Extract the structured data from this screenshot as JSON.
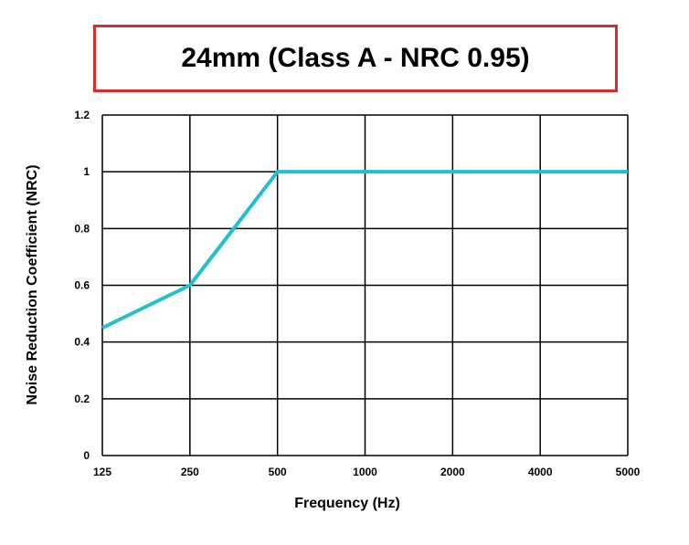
{
  "chart_data": {
    "type": "line",
    "title": "24mm (Class A - NRC 0.95)",
    "xlabel": "Frequency (Hz)",
    "ylabel": "Noise Reduction Coefficient (NRC)",
    "categories": [
      "125",
      "250",
      "500",
      "1000",
      "2000",
      "4000",
      "5000"
    ],
    "ylim": [
      0,
      1.2
    ],
    "yticks": [
      0,
      0.2,
      0.4,
      0.6,
      0.8,
      1,
      1.2
    ],
    "ytick_labels": [
      "0",
      "0.2",
      "0.4",
      "0.6",
      "0.8",
      "1",
      "1.2"
    ],
    "grid": true,
    "series": [
      {
        "values": [
          0.45,
          0.6,
          1.0,
          1.0,
          1.0,
          1.0,
          1.0
        ],
        "color": "#20c0cc"
      }
    ],
    "colors": {
      "title_border": "#d32f2f",
      "grid": "#000000",
      "line": "#20c0cc"
    }
  }
}
